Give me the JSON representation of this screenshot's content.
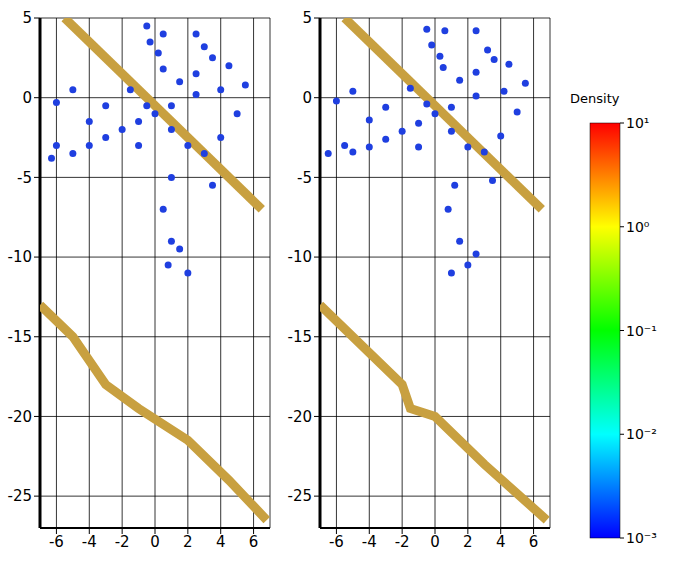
{
  "chart_data": [
    {
      "type": "scatter",
      "xlim": [
        -7,
        7
      ],
      "ylim": [
        -27,
        5
      ],
      "xticks": [
        -6,
        -4,
        -2,
        0,
        2,
        4,
        6
      ],
      "yticks": [
        5,
        0,
        -5,
        -10,
        -15,
        -20,
        -25
      ],
      "grid": true,
      "series": [
        {
          "type": "line",
          "color": "#c8a040",
          "line_style": "solid",
          "x": [
            -5.5,
            6.5
          ],
          "values": [
            5,
            -7
          ]
        },
        {
          "type": "line",
          "color": "#c8a040",
          "line_style": "solid",
          "x": [
            -7,
            -5,
            -3,
            -1,
            2,
            4.5,
            6.8
          ],
          "values": [
            -13,
            -15,
            -18,
            -19.5,
            -21.5,
            -24,
            -26.5
          ]
        },
        {
          "type": "scatter",
          "color": "#1f3fe0",
          "marker": "circle",
          "x": [
            -0.5,
            -0.3,
            0.2,
            0.5,
            2.5,
            3,
            3.5,
            4.5,
            4,
            2.5,
            1.5,
            1,
            0,
            -0.5,
            -1,
            -2,
            -3,
            -4,
            -5,
            -6,
            -6.3,
            -4,
            -3,
            -5,
            -6,
            -1.5,
            1,
            2,
            3,
            4,
            5,
            5.5,
            1,
            0.5,
            1,
            0.8,
            1.5,
            2,
            -1,
            3.5,
            2.5,
            0.5
          ],
          "values": [
            4.5,
            3.5,
            2.8,
            4,
            4,
            3.2,
            2.5,
            2,
            0.5,
            0.2,
            1,
            -0.5,
            -1,
            -0.5,
            -1.5,
            -2,
            -2.5,
            -3,
            -3.5,
            -3,
            -3.8,
            -1.5,
            -0.5,
            0.5,
            -0.3,
            0.5,
            -2,
            -3,
            -3.5,
            -2.5,
            -1,
            0.8,
            -5,
            -7,
            -9,
            -10.5,
            -9.5,
            -11,
            -3,
            -5.5,
            1.5,
            1.8
          ]
        }
      ]
    },
    {
      "type": "scatter",
      "xlim": [
        -7,
        7
      ],
      "ylim": [
        -27,
        5
      ],
      "xticks": [
        -6,
        -4,
        -2,
        0,
        2,
        4,
        6
      ],
      "yticks": [
        5,
        0,
        -5,
        -10,
        -15,
        -20,
        -25
      ],
      "grid": true,
      "series": [
        {
          "type": "line",
          "color": "#c8a040",
          "line_style": "solid",
          "x": [
            -5.5,
            6.5
          ],
          "values": [
            5,
            -7
          ]
        },
        {
          "type": "line",
          "color": "#c8a040",
          "line_style": "solid",
          "x": [
            -7,
            -4,
            -2,
            -1.5,
            0,
            3,
            6.8
          ],
          "values": [
            -13,
            -16,
            -18,
            -19.5,
            -20,
            -23,
            -26.5
          ]
        },
        {
          "type": "scatter",
          "color": "#1f3fe0",
          "marker": "circle",
          "x": [
            -0.5,
            -0.2,
            0.3,
            0.6,
            2.5,
            3.2,
            3.6,
            4.5,
            4.2,
            2.5,
            1.5,
            1,
            0,
            -0.5,
            -1,
            -2,
            -3,
            -4,
            -5,
            -5.5,
            -6.5,
            -4,
            -3,
            -5,
            -6,
            -1.5,
            1,
            2,
            3,
            4,
            5,
            5.5,
            1.2,
            1.5,
            2,
            1,
            2.5,
            0.8,
            -1,
            3.5,
            2.5,
            0.5
          ],
          "values": [
            4.3,
            3.3,
            2.6,
            4.2,
            4.2,
            3,
            2.4,
            2.1,
            0.4,
            0.1,
            1.1,
            -0.6,
            -1,
            -0.4,
            -1.6,
            -2.1,
            -2.6,
            -3.1,
            -3.4,
            -3,
            -3.5,
            -1.4,
            -0.6,
            0.4,
            -0.2,
            0.6,
            -2.1,
            -3.1,
            -3.4,
            -2.4,
            -0.9,
            0.9,
            -5.5,
            -9,
            -10.5,
            -11,
            -9.8,
            -7,
            -3.1,
            -5.2,
            1.6,
            1.9
          ]
        }
      ]
    }
  ],
  "colorbar": {
    "label": "Density",
    "range": [
      0.001,
      10
    ],
    "log": true,
    "ticks": [
      {
        "value": 10,
        "label": "10¹"
      },
      {
        "value": 1,
        "label": "10⁰"
      },
      {
        "value": 0.1,
        "label": "10⁻¹"
      },
      {
        "value": 0.01,
        "label": "10⁻²"
      },
      {
        "value": 0.001,
        "label": "10⁻³"
      }
    ],
    "colors": [
      "#0000ff",
      "#00ffff",
      "#00ff00",
      "#ffff00",
      "#ff0000"
    ]
  }
}
